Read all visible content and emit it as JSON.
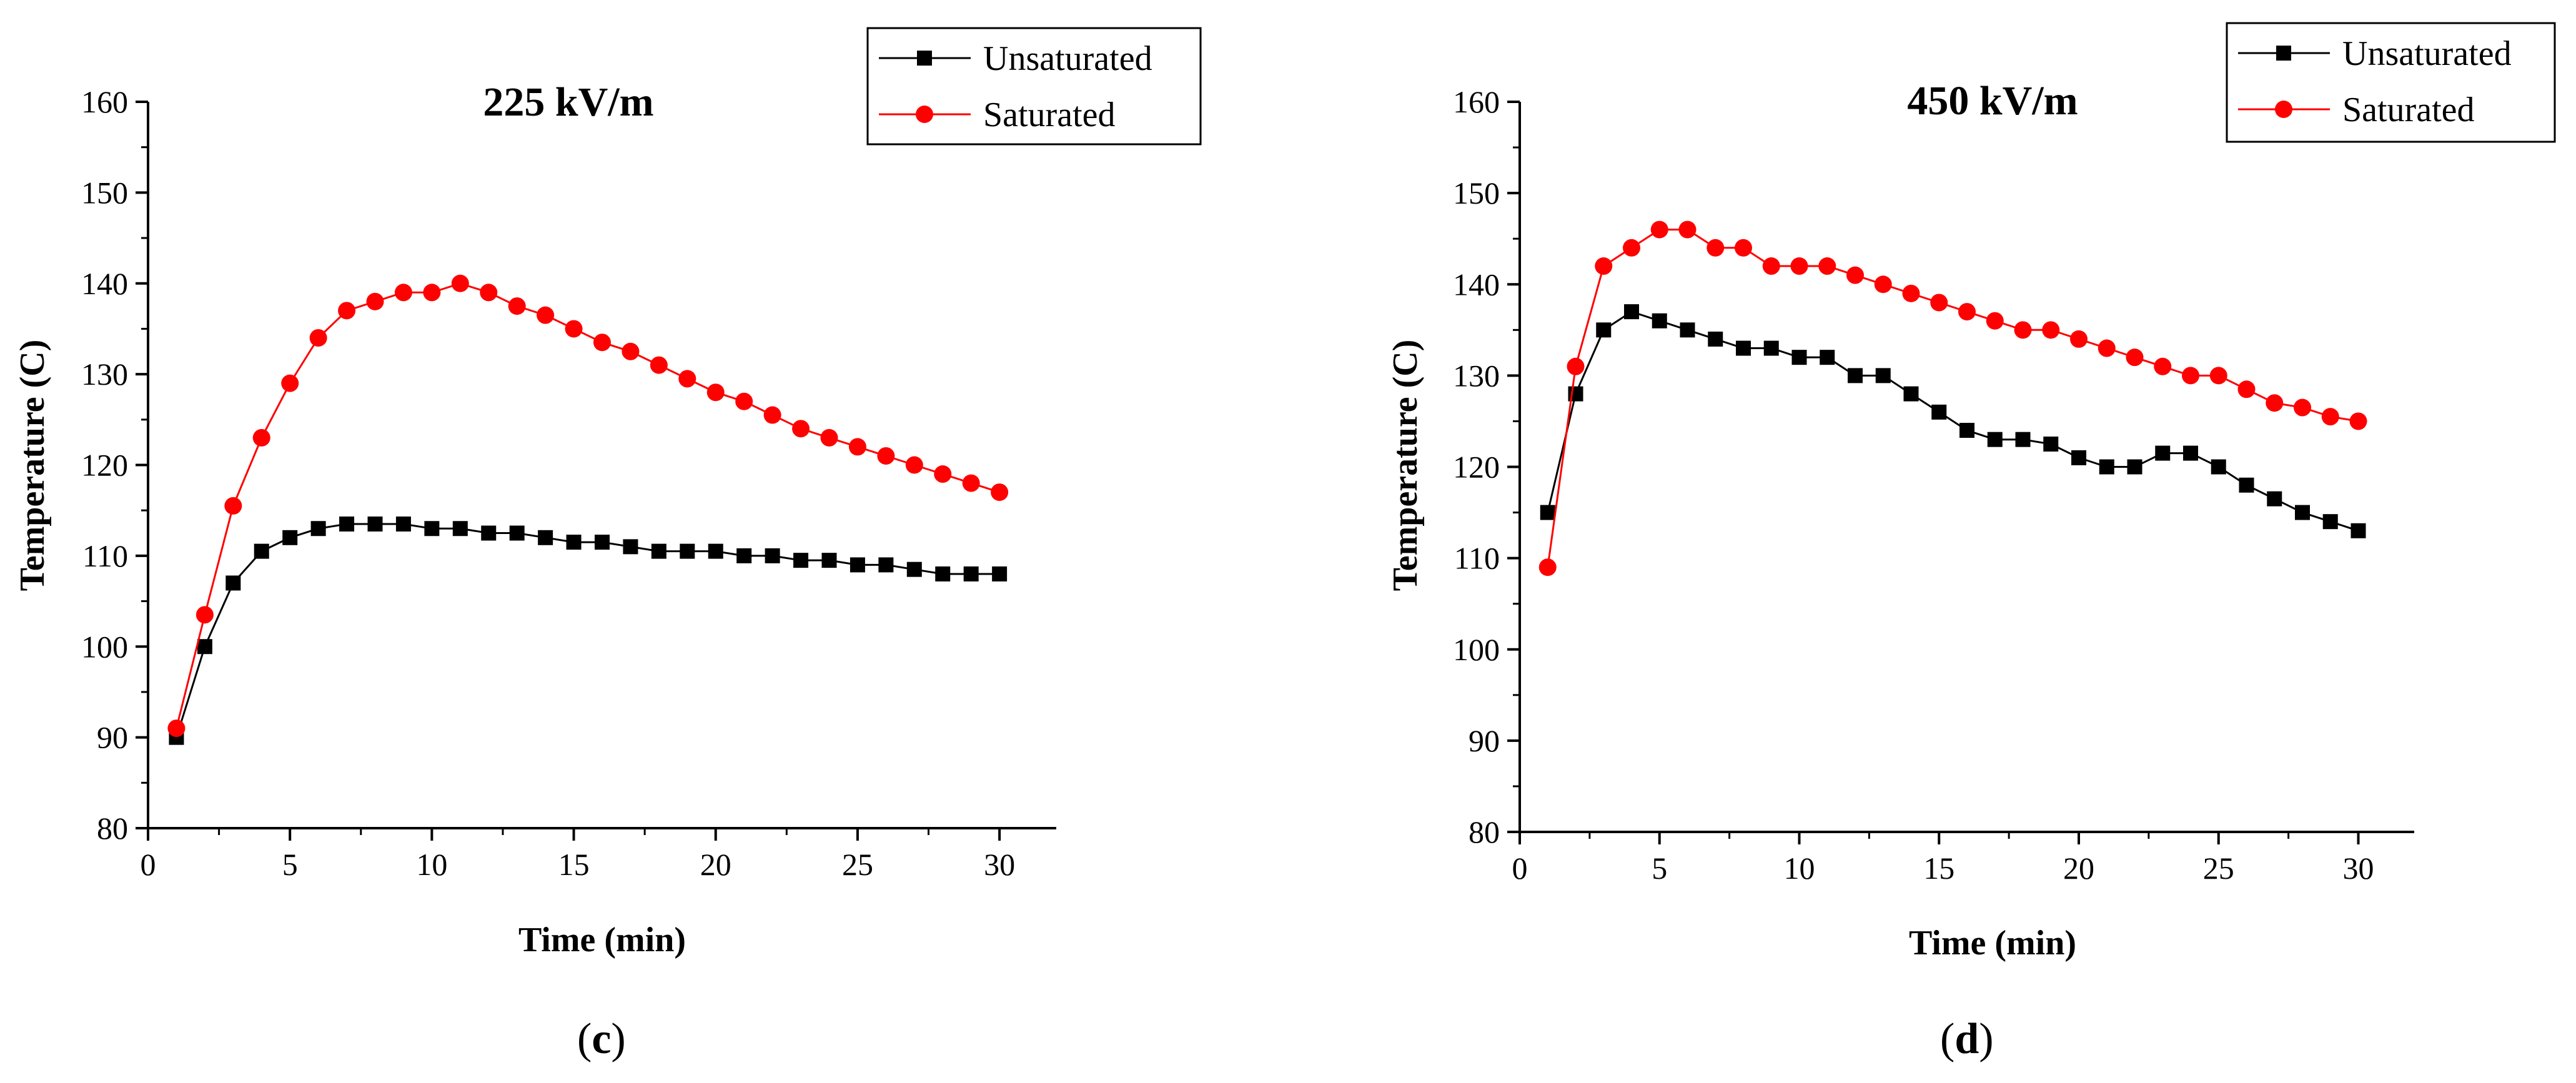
{
  "chart_data": [
    {
      "type": "line",
      "title": "225 kV/m",
      "panel_label": "(c)",
      "panel_letter": "c",
      "xlabel": "Time (min)",
      "ylabel": "Temperature (C)",
      "xlim": [
        0,
        32
      ],
      "ylim": [
        80,
        160
      ],
      "xticks": [
        0,
        5,
        10,
        15,
        20,
        25,
        30
      ],
      "yticks": [
        80,
        90,
        100,
        110,
        120,
        130,
        140,
        150,
        160
      ],
      "legend_position": "top-right",
      "x": [
        1,
        2,
        3,
        4,
        5,
        6,
        7,
        8,
        9,
        10,
        11,
        12,
        13,
        14,
        15,
        16,
        17,
        18,
        19,
        20,
        21,
        22,
        23,
        24,
        25,
        26,
        27,
        28,
        29,
        30
      ],
      "series": [
        {
          "name": "Unsaturated",
          "color": "#000000",
          "marker": "square",
          "values": [
            90,
            100,
            107,
            110.5,
            112,
            113,
            113.5,
            113.5,
            113.5,
            113,
            113,
            112.5,
            112.5,
            112,
            111.5,
            111.5,
            111,
            110.5,
            110.5,
            110.5,
            110,
            110,
            109.5,
            109.5,
            109,
            109,
            108.5,
            108,
            108,
            108
          ]
        },
        {
          "name": "Saturated",
          "color": "#ff0000",
          "marker": "circle",
          "values": [
            91,
            103.5,
            115.5,
            123,
            129,
            134,
            137,
            138,
            139,
            139,
            140,
            139,
            137.5,
            136.5,
            135,
            133.5,
            132.5,
            131,
            129.5,
            128,
            127,
            125.5,
            124,
            123,
            122,
            121,
            120,
            119,
            118,
            117
          ]
        }
      ]
    },
    {
      "type": "line",
      "title": "450 kV/m",
      "panel_label": "(d)",
      "panel_letter": "d",
      "xlabel": "Time (min)",
      "ylabel": "Temperature (C)",
      "xlim": [
        0,
        32
      ],
      "ylim": [
        80,
        160
      ],
      "xticks": [
        0,
        5,
        10,
        15,
        20,
        25,
        30
      ],
      "yticks": [
        80,
        90,
        100,
        110,
        120,
        130,
        140,
        150,
        160
      ],
      "legend_position": "top-right",
      "x": [
        1,
        2,
        3,
        4,
        5,
        6,
        7,
        8,
        9,
        10,
        11,
        12,
        13,
        14,
        15,
        16,
        17,
        18,
        19,
        20,
        21,
        22,
        23,
        24,
        25,
        26,
        27,
        28,
        29,
        30
      ],
      "series": [
        {
          "name": "Unsaturated",
          "color": "#000000",
          "marker": "square",
          "values": [
            115,
            128,
            135,
            137,
            136,
            135,
            134,
            133,
            133,
            132,
            132,
            130,
            130,
            128,
            126,
            124,
            123,
            123,
            122.5,
            121,
            120,
            120,
            121.5,
            121.5,
            120,
            118,
            116.5,
            115,
            114,
            113
          ]
        },
        {
          "name": "Saturated",
          "color": "#ff0000",
          "marker": "circle",
          "values": [
            109,
            131,
            142,
            144,
            146,
            146,
            144,
            144,
            142,
            142,
            142,
            141,
            140,
            139,
            138,
            137,
            136,
            135,
            135,
            134,
            133,
            132,
            131,
            130,
            130,
            128.5,
            127,
            126.5,
            125.5,
            125
          ]
        }
      ]
    }
  ]
}
